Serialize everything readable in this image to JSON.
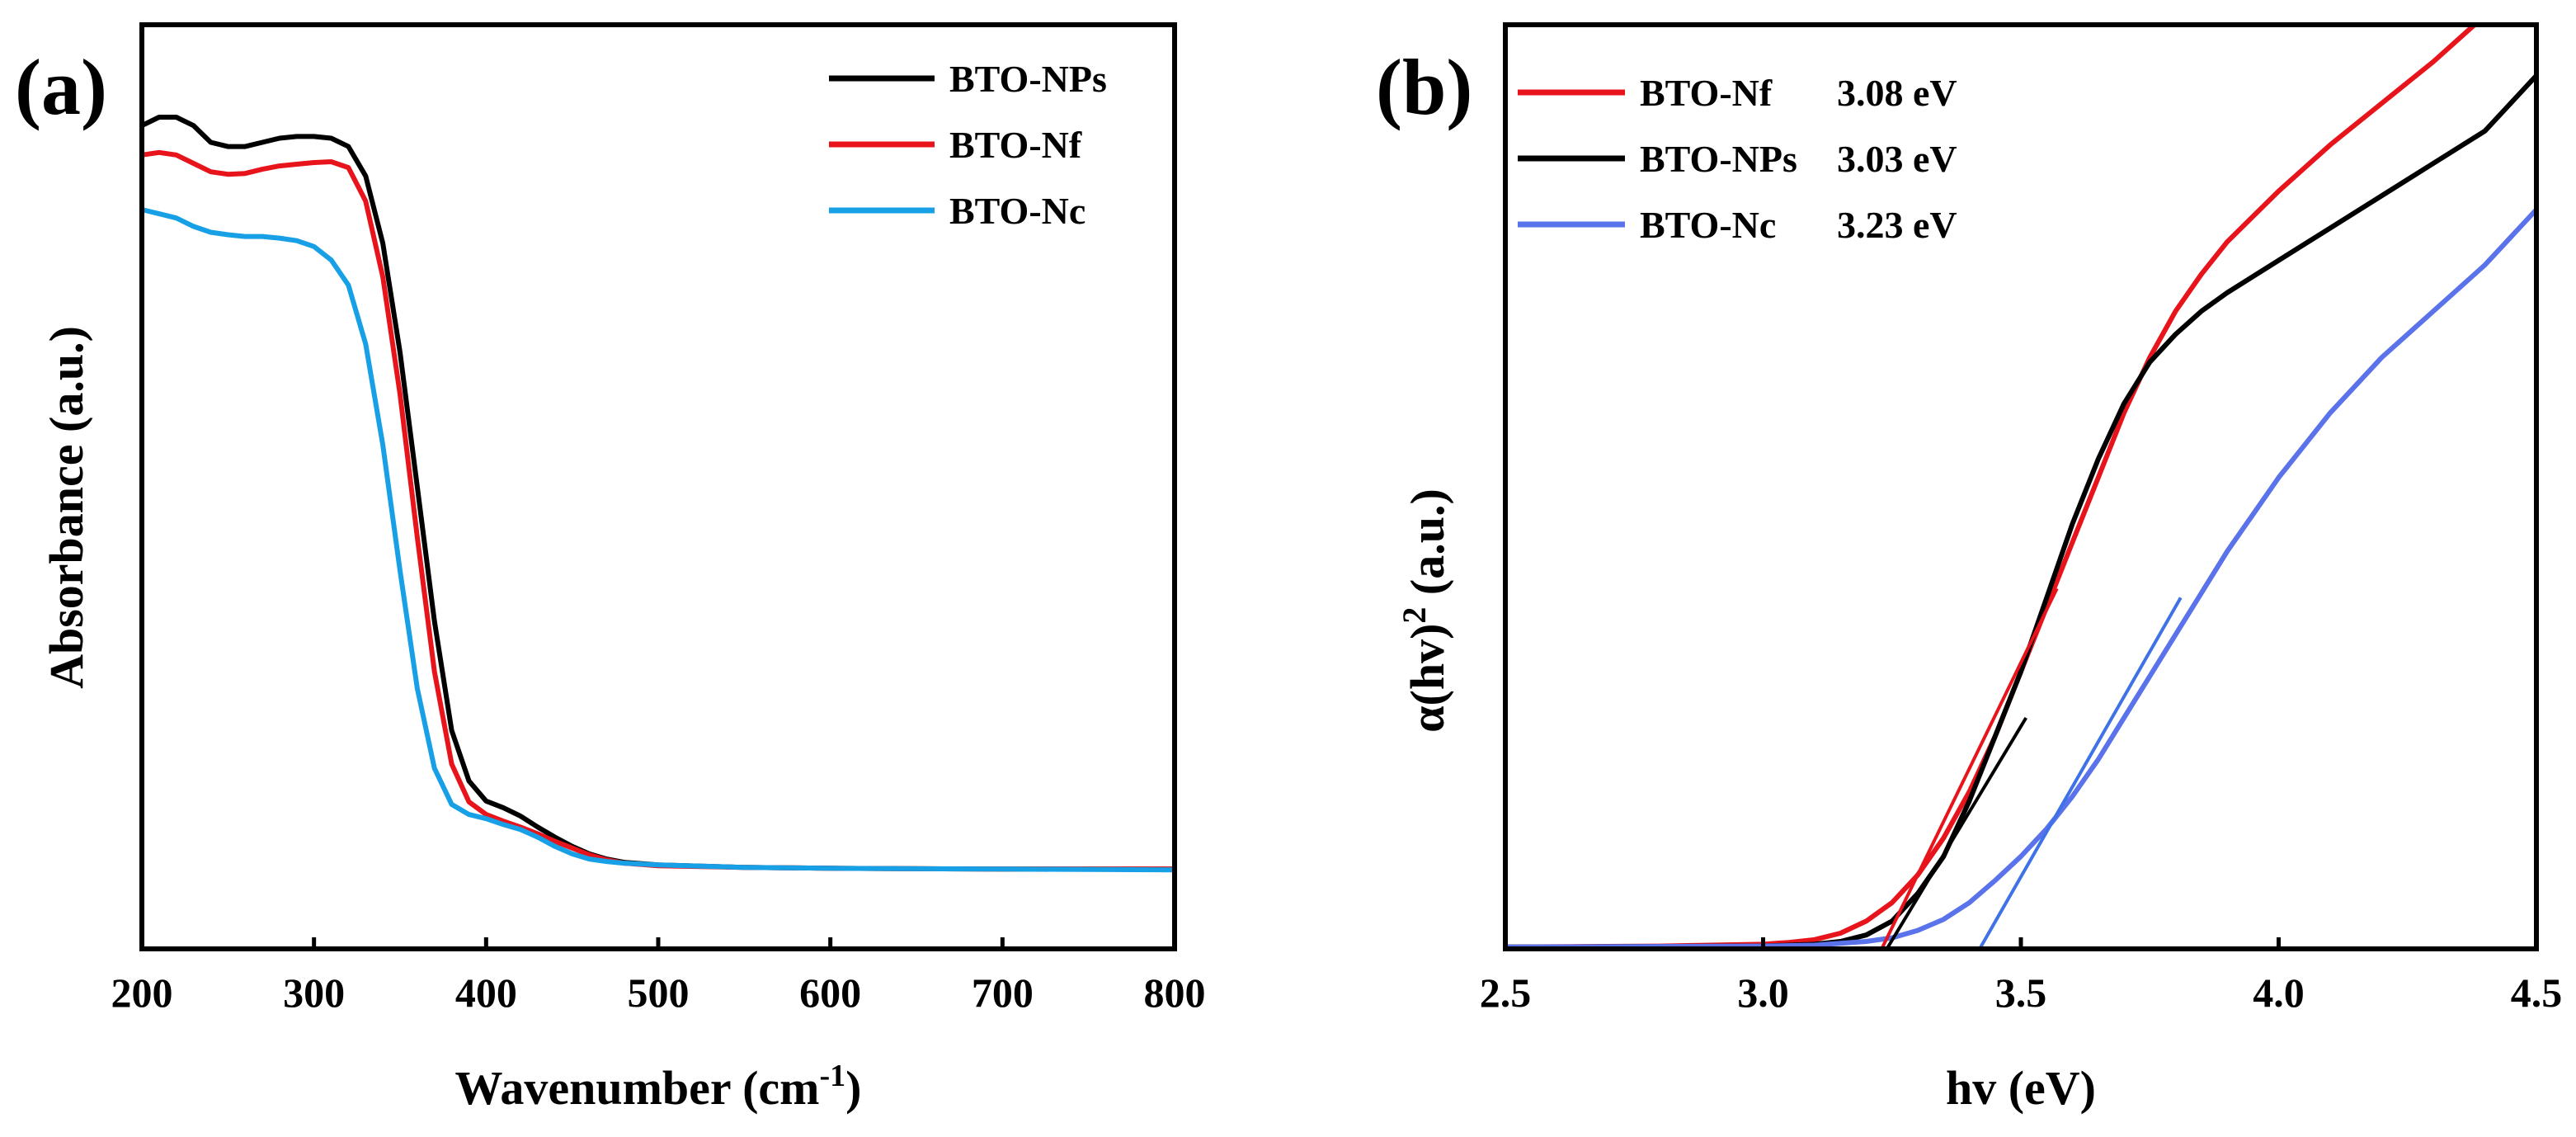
{
  "colors": {
    "black": "#000000",
    "red": "#e8141b",
    "sky": "#17a0e6",
    "blue": "#5a72ea"
  },
  "chart_data": [
    {
      "panel_label": "(a)",
      "type": "line",
      "title": "",
      "xlabel_main": "Wavenumber  (cm",
      "xlabel_sup": "-1",
      "xlabel_close": ")",
      "ylabel": "Absorbance (a.u.)",
      "xlim": [
        200,
        800
      ],
      "ylim": [
        0,
        1.1
      ],
      "xticks": [
        "200",
        "300",
        "400",
        "500",
        "600",
        "700",
        "800"
      ],
      "legend_position": "top-right",
      "series": [
        {
          "name": "BTO-NPs",
          "color": "#000000",
          "x": [
            200,
            210,
            220,
            230,
            240,
            250,
            260,
            270,
            280,
            290,
            300,
            310,
            320,
            330,
            340,
            350,
            360,
            370,
            380,
            390,
            400,
            410,
            420,
            430,
            440,
            450,
            460,
            470,
            480,
            500,
            550,
            600,
            700,
            800
          ],
          "y": [
            0.98,
            0.99,
            0.99,
            0.98,
            0.96,
            0.955,
            0.955,
            0.96,
            0.965,
            0.967,
            0.967,
            0.965,
            0.955,
            0.92,
            0.84,
            0.71,
            0.55,
            0.39,
            0.26,
            0.2,
            0.176,
            0.168,
            0.158,
            0.145,
            0.133,
            0.122,
            0.113,
            0.107,
            0.103,
            0.1,
            0.097,
            0.096,
            0.095,
            0.095
          ]
        },
        {
          "name": "BTO-Nf",
          "color": "#e8141b",
          "x": [
            200,
            210,
            220,
            230,
            240,
            250,
            260,
            270,
            280,
            290,
            300,
            310,
            320,
            330,
            340,
            350,
            360,
            370,
            380,
            390,
            400,
            410,
            420,
            430,
            440,
            450,
            460,
            470,
            480,
            500,
            550,
            600,
            700,
            800
          ],
          "y": [
            0.945,
            0.948,
            0.945,
            0.935,
            0.925,
            0.922,
            0.923,
            0.928,
            0.932,
            0.934,
            0.936,
            0.937,
            0.93,
            0.89,
            0.8,
            0.66,
            0.49,
            0.33,
            0.22,
            0.175,
            0.16,
            0.152,
            0.145,
            0.137,
            0.128,
            0.12,
            0.112,
            0.106,
            0.102,
            0.099,
            0.097,
            0.096,
            0.095,
            0.095
          ]
        },
        {
          "name": "BTO-Nc",
          "color": "#17a0e6",
          "x": [
            200,
            210,
            220,
            230,
            240,
            250,
            260,
            270,
            280,
            290,
            300,
            310,
            320,
            330,
            340,
            350,
            360,
            370,
            380,
            390,
            400,
            410,
            420,
            430,
            440,
            450,
            460,
            470,
            480,
            500,
            550,
            600,
            700,
            800
          ],
          "y": [
            0.88,
            0.875,
            0.87,
            0.86,
            0.853,
            0.85,
            0.848,
            0.848,
            0.846,
            0.843,
            0.836,
            0.82,
            0.79,
            0.72,
            0.6,
            0.45,
            0.31,
            0.215,
            0.172,
            0.16,
            0.155,
            0.148,
            0.142,
            0.133,
            0.122,
            0.113,
            0.107,
            0.104,
            0.102,
            0.1,
            0.097,
            0.096,
            0.095,
            0.094
          ]
        }
      ]
    },
    {
      "panel_label": "(b)",
      "type": "line",
      "title": "",
      "xlabel": "hv (eV)",
      "ylabel_main": "α(hv)",
      "ylabel_sup": "2",
      "ylabel_tail": " (a.u.)",
      "xlim": [
        2.5,
        4.5
      ],
      "ylim": [
        0,
        1
      ],
      "xticks": [
        "2.5",
        "3.0",
        "3.5",
        "4.0",
        "4.5"
      ],
      "legend_position": "top-left",
      "series": [
        {
          "name": "BTO-Nf",
          "gap": "3.08 eV",
          "color": "#e8141b",
          "x": [
            2.5,
            2.8,
            3.0,
            3.05,
            3.1,
            3.15,
            3.2,
            3.25,
            3.3,
            3.35,
            3.4,
            3.45,
            3.5,
            3.55,
            3.6,
            3.65,
            3.7,
            3.75,
            3.8,
            3.85,
            3.9,
            4.0,
            4.1,
            4.2,
            4.3,
            4.38
          ],
          "y": [
            0.002,
            0.003,
            0.005,
            0.007,
            0.01,
            0.017,
            0.03,
            0.05,
            0.08,
            0.12,
            0.17,
            0.23,
            0.3,
            0.37,
            0.44,
            0.51,
            0.58,
            0.64,
            0.69,
            0.73,
            0.765,
            0.82,
            0.87,
            0.915,
            0.96,
            1.0
          ]
        },
        {
          "name": "BTO-NPs",
          "gap": "3.03 eV",
          "color": "#000000",
          "x": [
            2.5,
            3.0,
            3.1,
            3.15,
            3.2,
            3.25,
            3.3,
            3.35,
            3.4,
            3.45,
            3.5,
            3.55,
            3.6,
            3.65,
            3.7,
            3.75,
            3.8,
            3.85,
            3.9,
            4.0,
            4.1,
            4.2,
            4.3,
            4.4,
            4.5
          ],
          "y": [
            0.002,
            0.003,
            0.005,
            0.008,
            0.015,
            0.03,
            0.06,
            0.1,
            0.16,
            0.23,
            0.3,
            0.38,
            0.46,
            0.53,
            0.59,
            0.635,
            0.665,
            0.69,
            0.71,
            0.745,
            0.78,
            0.815,
            0.85,
            0.885,
            0.945
          ]
        },
        {
          "name": "BTO-Nc",
          "gap": "3.23 eV",
          "color": "#5a72ea",
          "x": [
            2.5,
            3.0,
            3.1,
            3.2,
            3.25,
            3.3,
            3.35,
            3.4,
            3.45,
            3.5,
            3.55,
            3.6,
            3.65,
            3.7,
            3.75,
            3.8,
            3.85,
            3.9,
            3.95,
            4.0,
            4.1,
            4.2,
            4.3,
            4.4,
            4.5
          ],
          "y": [
            0.002,
            0.003,
            0.004,
            0.008,
            0.012,
            0.02,
            0.032,
            0.05,
            0.074,
            0.1,
            0.13,
            0.165,
            0.205,
            0.25,
            0.295,
            0.34,
            0.385,
            0.43,
            0.47,
            0.51,
            0.58,
            0.64,
            0.69,
            0.74,
            0.8
          ]
        }
      ],
      "tangents": [
        {
          "name": "BTO-Nf tangent",
          "color": "#e8141b",
          "x": [
            3.23,
            3.57
          ],
          "y": [
            0.0,
            0.39
          ]
        },
        {
          "name": "BTO-NPs tangent",
          "color": "#000000",
          "x": [
            3.24,
            3.51
          ],
          "y": [
            0.0,
            0.25
          ]
        },
        {
          "name": "BTO-Nc tangent",
          "color": "#3f72e6",
          "x": [
            3.42,
            3.81
          ],
          "y": [
            0.0,
            0.38
          ]
        }
      ]
    }
  ]
}
